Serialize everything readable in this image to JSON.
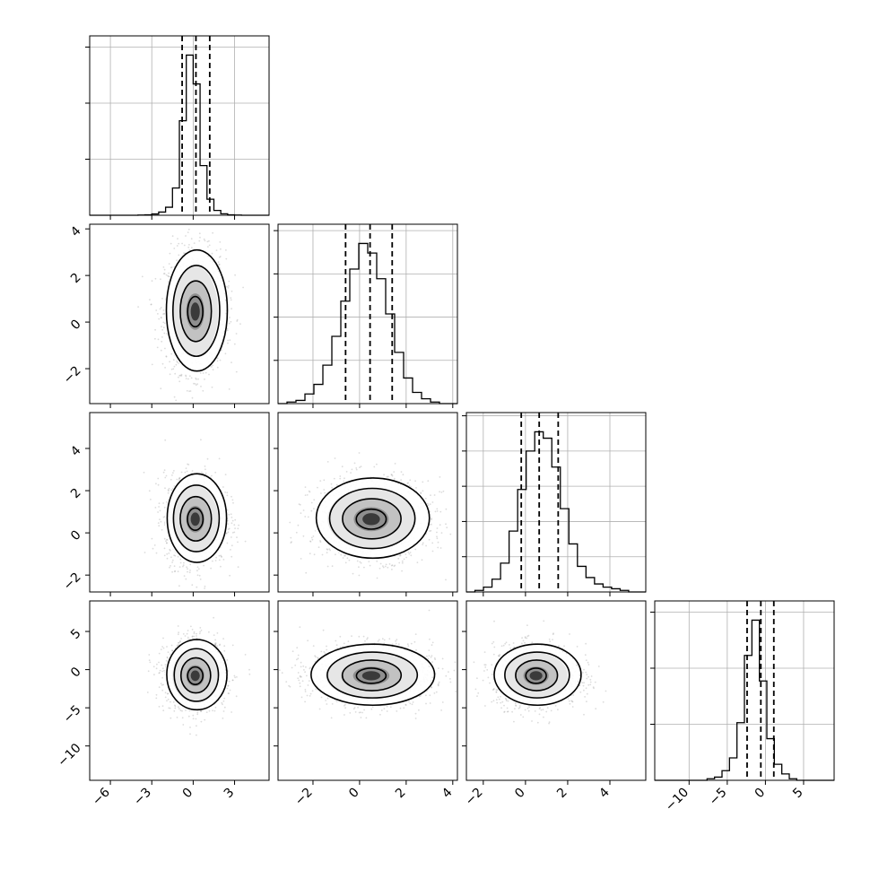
{
  "chart_data": {
    "type": "corner",
    "title": "",
    "n_params": 4,
    "params": [
      {
        "range": [
          -7.5,
          5.5
        ],
        "ticks": [
          -6,
          -3,
          0,
          3
        ],
        "median": 0.2,
        "q16": -0.8,
        "q84": 1.2
      },
      {
        "range": [
          -3.5,
          4.2
        ],
        "ticks": [
          -2,
          0,
          2,
          4
        ],
        "median": 0.45,
        "q16": -0.6,
        "q84": 1.4
      },
      {
        "range": [
          -2.8,
          5.7
        ],
        "ticks": [
          -2,
          0,
          2,
          4
        ],
        "median": 0.65,
        "q16": -0.2,
        "q84": 1.55
      },
      {
        "range": [
          -14.5,
          9.0
        ],
        "ticks": [
          -10,
          -5,
          0,
          5
        ],
        "median": -0.6,
        "q16": -2.4,
        "q84": 1.1
      }
    ],
    "histograms": [
      {
        "edges_start": -7.5,
        "edges_end": 5.5,
        "counts": [
          0,
          0,
          0,
          0,
          0,
          0,
          0,
          1,
          3,
          8,
          20,
          50,
          170,
          590,
          1000,
          820,
          310,
          100,
          30,
          9,
          3,
          1,
          0,
          0,
          0,
          0
        ],
        "ymax": 1.12,
        "yticks": [
          0.35,
          0.7,
          1.05
        ]
      },
      {
        "edges_start": -3.5,
        "edges_end": 4.2,
        "counts": [
          0,
          1,
          2,
          6,
          12,
          24,
          42,
          64,
          84,
          100,
          94,
          78,
          56,
          32,
          16,
          7,
          3,
          1,
          0,
          0
        ],
        "ymax": 1.12,
        "yticks": [
          0.27,
          0.54,
          0.81,
          1.08
        ]
      },
      {
        "edges_start": -2.8,
        "edges_end": 5.7,
        "counts": [
          0,
          1,
          3,
          8,
          18,
          38,
          64,
          88,
          100,
          96,
          78,
          52,
          30,
          16,
          9,
          5,
          3,
          2,
          1,
          0,
          0
        ],
        "ymax": 1.12,
        "yticks": [
          0.22,
          0.44,
          0.66,
          0.88,
          1.1
        ]
      },
      {
        "edges_start": -14.5,
        "edges_end": 9.0,
        "counts": [
          0,
          0,
          0,
          0,
          0,
          0,
          0,
          1,
          2,
          6,
          14,
          36,
          78,
          100,
          62,
          26,
          10,
          4,
          1,
          0,
          0,
          0,
          0,
          0
        ],
        "ymax": 1.12,
        "yticks": [
          0.35,
          0.7,
          1.05
        ]
      }
    ],
    "pairs": [
      {
        "x": 0,
        "y": 1,
        "center": [
          0.15,
          0.45
        ],
        "sx": 1.1,
        "sy": 1.3
      },
      {
        "x": 0,
        "y": 2,
        "center": [
          0.15,
          0.65
        ],
        "sx": 1.1,
        "sy": 1.05
      },
      {
        "x": 1,
        "y": 2,
        "center": [
          0.5,
          0.65
        ],
        "sx": 1.25,
        "sy": 0.95
      },
      {
        "x": 0,
        "y": 3,
        "center": [
          0.15,
          -0.8
        ],
        "sx": 1.1,
        "sy": 2.3
      },
      {
        "x": 1,
        "y": 3,
        "center": [
          0.5,
          -0.8
        ],
        "sx": 1.3,
        "sy": 2.0
      },
      {
        "x": 2,
        "y": 3,
        "center": [
          0.5,
          -0.8
        ],
        "sx": 1.0,
        "sy": 2.0
      }
    ],
    "contour_levels": [
      0.5,
      1.0,
      1.5,
      2.0
    ],
    "colors": {
      "frame": "#000000",
      "grid": "#b0b0b0",
      "points": "#9a9a9a",
      "lines": "#000000"
    },
    "grid": true,
    "legend": "none"
  }
}
